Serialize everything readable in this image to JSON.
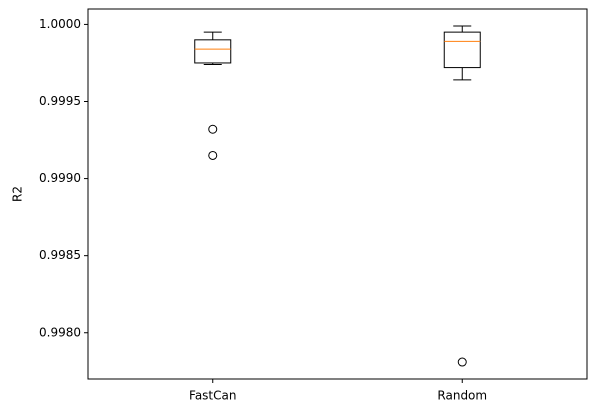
{
  "chart_data": {
    "type": "box",
    "ylabel": "R2",
    "categories": [
      "FastCan",
      "Random"
    ],
    "boxes": [
      {
        "whislo": 0.99974,
        "q1": 0.99975,
        "med": 0.99984,
        "q3": 0.9999,
        "whishi": 0.99995,
        "fliers": [
          0.99932,
          0.99915
        ]
      },
      {
        "whislo": 0.99964,
        "q1": 0.99972,
        "med": 0.99989,
        "q3": 0.99995,
        "whishi": 0.99999,
        "fliers": [
          0.99781
        ]
      }
    ],
    "box_color": "#000000",
    "median_color": "#ff7f0e",
    "ylim": [
      0.9977,
      1.0001
    ],
    "yticks": [
      {
        "value": 1,
        "label": "1.0000"
      },
      0.9995,
      {
        "value": 0.999,
        "label": "0.9990"
      },
      0.9985,
      {
        "value": 0.998,
        "label": "0.9980"
      }
    ],
    "grid": false
  }
}
